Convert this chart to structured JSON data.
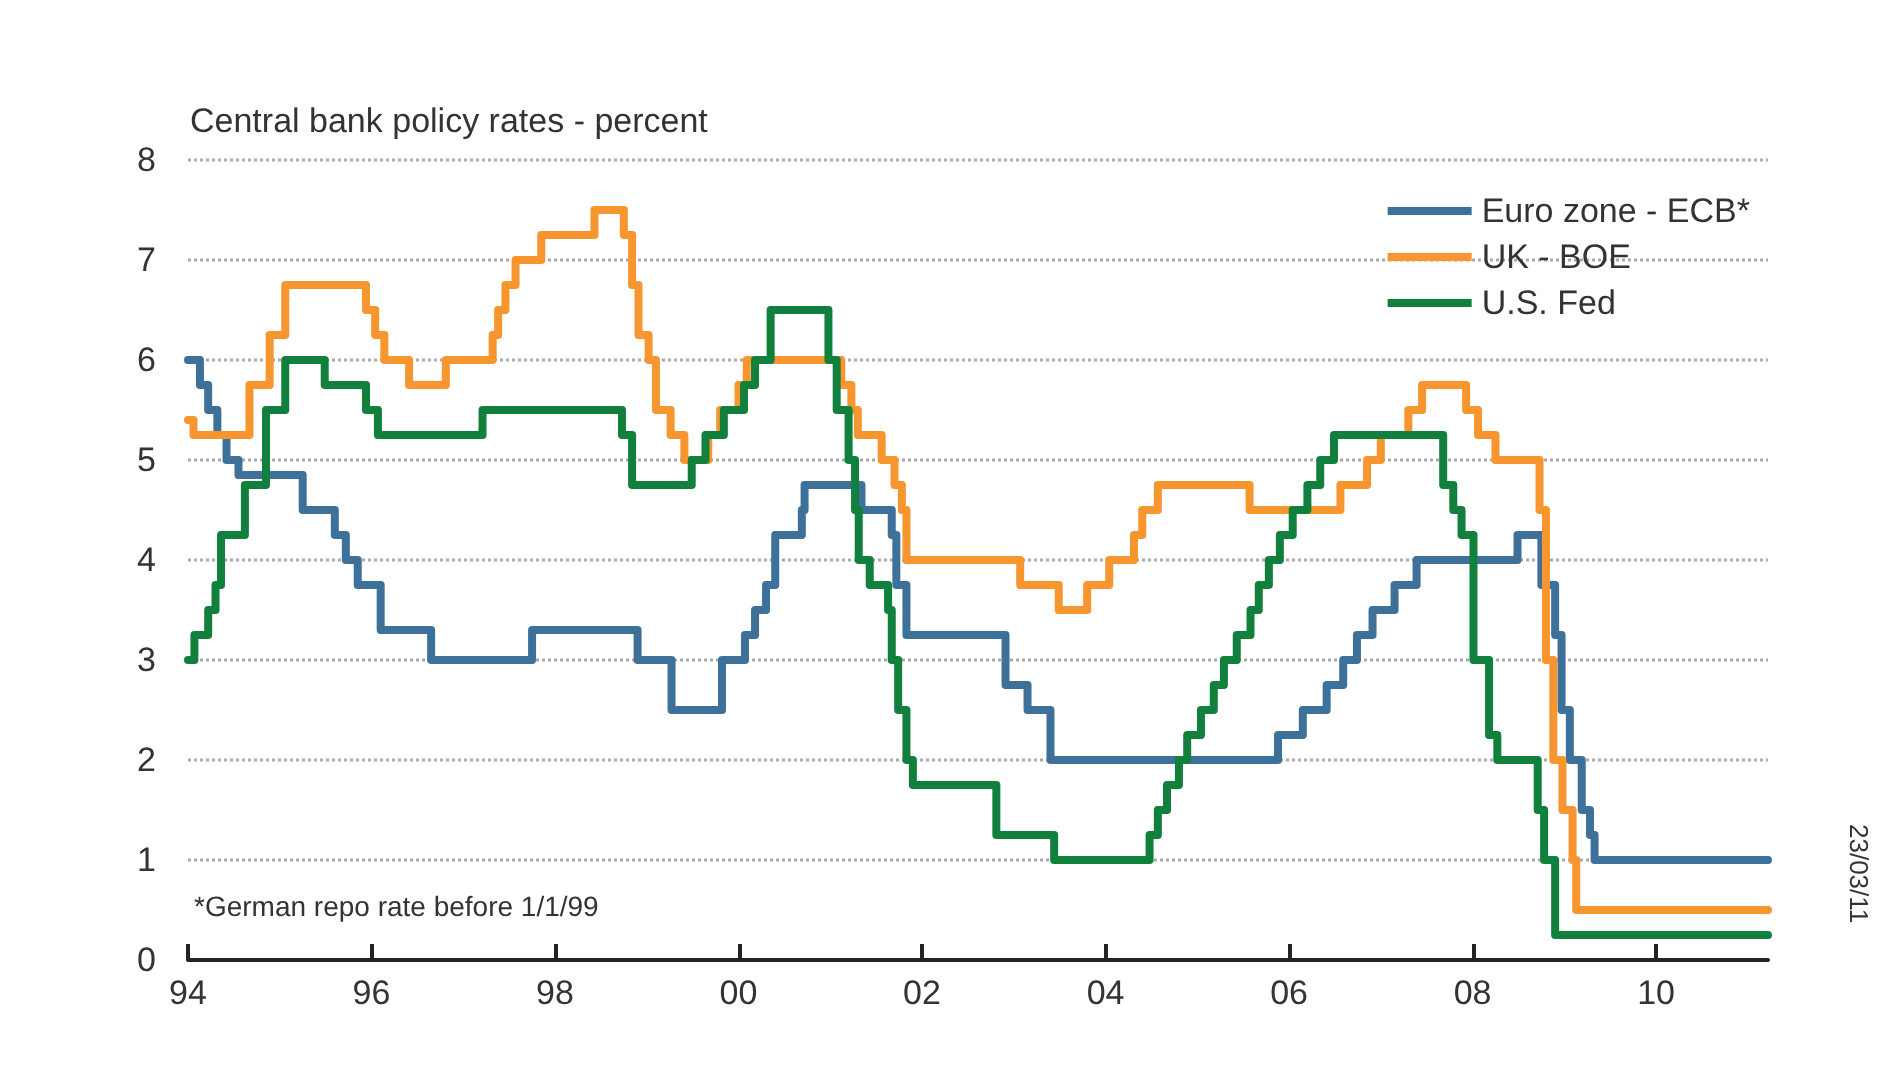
{
  "chart_data": {
    "type": "step",
    "title": "Central bank policy rates - percent",
    "annotations": [
      "*German repo rate before 1/1/99",
      "23/03/11"
    ],
    "xlim": [
      1994,
      2011.22
    ],
    "xticks": [
      {
        "value": 1994,
        "label": "94"
      },
      {
        "value": 1996,
        "label": "96"
      },
      {
        "value": 1998,
        "label": "98"
      },
      {
        "value": 2000,
        "label": "00"
      },
      {
        "value": 2002,
        "label": "02"
      },
      {
        "value": 2004,
        "label": "04"
      },
      {
        "value": 2006,
        "label": "06"
      },
      {
        "value": 2008,
        "label": "08"
      },
      {
        "value": 2010,
        "label": "10"
      }
    ],
    "ylim": [
      0,
      8
    ],
    "yticks": [
      0,
      1,
      2,
      3,
      4,
      5,
      6,
      7,
      8
    ],
    "grid": "y",
    "legend": "top right",
    "marker": "none",
    "line_style": "solid",
    "series": [
      {
        "name": "Euro zone - ECB*",
        "color": "#3d7199",
        "x": [
          1994,
          1994.13,
          1994.22,
          1994.32,
          1994.42,
          1994.55,
          1995.25,
          1995.6,
          1995.72,
          1995.85,
          1996.1,
          1996.65,
          1997.75,
          1998.9,
          1999.27,
          1999.82,
          2000.07,
          2000.18,
          2000.3,
          2000.4,
          2000.69,
          2000.72,
          2001.34,
          2001.67,
          2001.72,
          2001.83,
          2002.91,
          2003.15,
          2003.4,
          2005.88,
          2006.15,
          2006.41,
          2006.59,
          2006.74,
          2006.91,
          2007.15,
          2007.39,
          2008.49,
          2008.75,
          2008.9,
          2008.97,
          2009.06,
          2009.19,
          2009.28,
          2009.33,
          2011.22
        ],
        "values": [
          6.0,
          5.75,
          5.5,
          5.25,
          5.0,
          4.85,
          4.5,
          4.25,
          4.0,
          3.75,
          3.3,
          3.0,
          3.3,
          3.0,
          2.5,
          3.0,
          3.25,
          3.5,
          3.75,
          4.25,
          4.5,
          4.75,
          4.5,
          4.25,
          3.75,
          3.25,
          2.75,
          2.5,
          2.0,
          2.25,
          2.5,
          2.75,
          3.0,
          3.25,
          3.5,
          3.75,
          4.0,
          4.25,
          3.75,
          3.25,
          2.5,
          2.0,
          1.5,
          1.25,
          1.0,
          1.0
        ]
      },
      {
        "name": "UK - BOE",
        "color": "#f7962e",
        "x": [
          1994,
          1994.06,
          1994.67,
          1994.89,
          1995.06,
          1995.94,
          1996.04,
          1996.14,
          1996.41,
          1996.81,
          1997.32,
          1997.38,
          1997.46,
          1997.57,
          1997.85,
          1998.43,
          1998.75,
          1998.84,
          1998.91,
          1999.02,
          1999.1,
          1999.26,
          1999.41,
          1999.67,
          1999.8,
          2000.0,
          2000.09,
          2001.12,
          2001.23,
          2001.3,
          2001.56,
          2001.7,
          2001.78,
          2001.83,
          2003.07,
          2003.49,
          2003.8,
          2004.04,
          2004.31,
          2004.4,
          2004.57,
          2005.57,
          2006.56,
          2006.85,
          2007.0,
          2007.3,
          2007.45,
          2007.93,
          2008.06,
          2008.25,
          2008.73,
          2008.8,
          2008.88,
          2008.98,
          2009.09,
          2009.13,
          2011.22
        ],
        "values": [
          5.4,
          5.25,
          5.75,
          6.25,
          6.75,
          6.5,
          6.25,
          6.0,
          5.75,
          6.0,
          6.25,
          6.5,
          6.75,
          7.0,
          7.25,
          7.5,
          7.25,
          6.75,
          6.25,
          6.0,
          5.5,
          5.25,
          5.0,
          5.25,
          5.5,
          5.75,
          6.0,
          5.75,
          5.5,
          5.25,
          5.0,
          4.75,
          4.5,
          4.0,
          3.75,
          3.5,
          3.75,
          4.0,
          4.25,
          4.5,
          4.75,
          4.5,
          4.75,
          5.0,
          5.25,
          5.5,
          5.75,
          5.5,
          5.25,
          5.0,
          4.5,
          3.0,
          2.0,
          1.5,
          1.0,
          0.5,
          0.5
        ]
      },
      {
        "name": "U.S. Fed",
        "color": "#11803c",
        "x": [
          1994,
          1994.07,
          1994.22,
          1994.3,
          1994.36,
          1994.62,
          1994.85,
          1995.06,
          1995.49,
          1995.94,
          1996.07,
          1997.21,
          1998.73,
          1998.84,
          1999.49,
          1999.64,
          1999.84,
          2000.06,
          2000.18,
          2000.35,
          2000.98,
          2001.07,
          2001.2,
          2001.27,
          2001.31,
          2001.43,
          2001.63,
          2001.67,
          2001.74,
          2001.83,
          2001.9,
          2002.81,
          2003.44,
          2004.48,
          2004.57,
          2004.67,
          2004.8,
          2004.89,
          2005.04,
          2005.18,
          2005.29,
          2005.43,
          2005.58,
          2005.67,
          2005.78,
          2005.9,
          2006.04,
          2006.2,
          2006.34,
          2006.49,
          2007.68,
          2007.79,
          2007.88,
          2008.01,
          2008.18,
          2008.27,
          2008.71,
          2008.78,
          2008.9,
          2011.22
        ],
        "values": [
          3.0,
          3.25,
          3.5,
          3.75,
          4.25,
          4.75,
          5.5,
          6.0,
          5.75,
          5.5,
          5.25,
          5.5,
          5.25,
          4.75,
          5.0,
          5.25,
          5.5,
          5.75,
          6.0,
          6.5,
          6.0,
          5.5,
          5.0,
          4.5,
          4.0,
          3.75,
          3.5,
          3.0,
          2.5,
          2.0,
          1.75,
          1.25,
          1.0,
          1.25,
          1.5,
          1.75,
          2.0,
          2.25,
          2.5,
          2.75,
          3.0,
          3.25,
          3.5,
          3.75,
          4.0,
          4.25,
          4.5,
          4.75,
          5.0,
          5.25,
          4.75,
          4.5,
          4.25,
          3.0,
          2.25,
          2.0,
          1.5,
          1.0,
          0.25,
          0.25
        ]
      }
    ]
  }
}
